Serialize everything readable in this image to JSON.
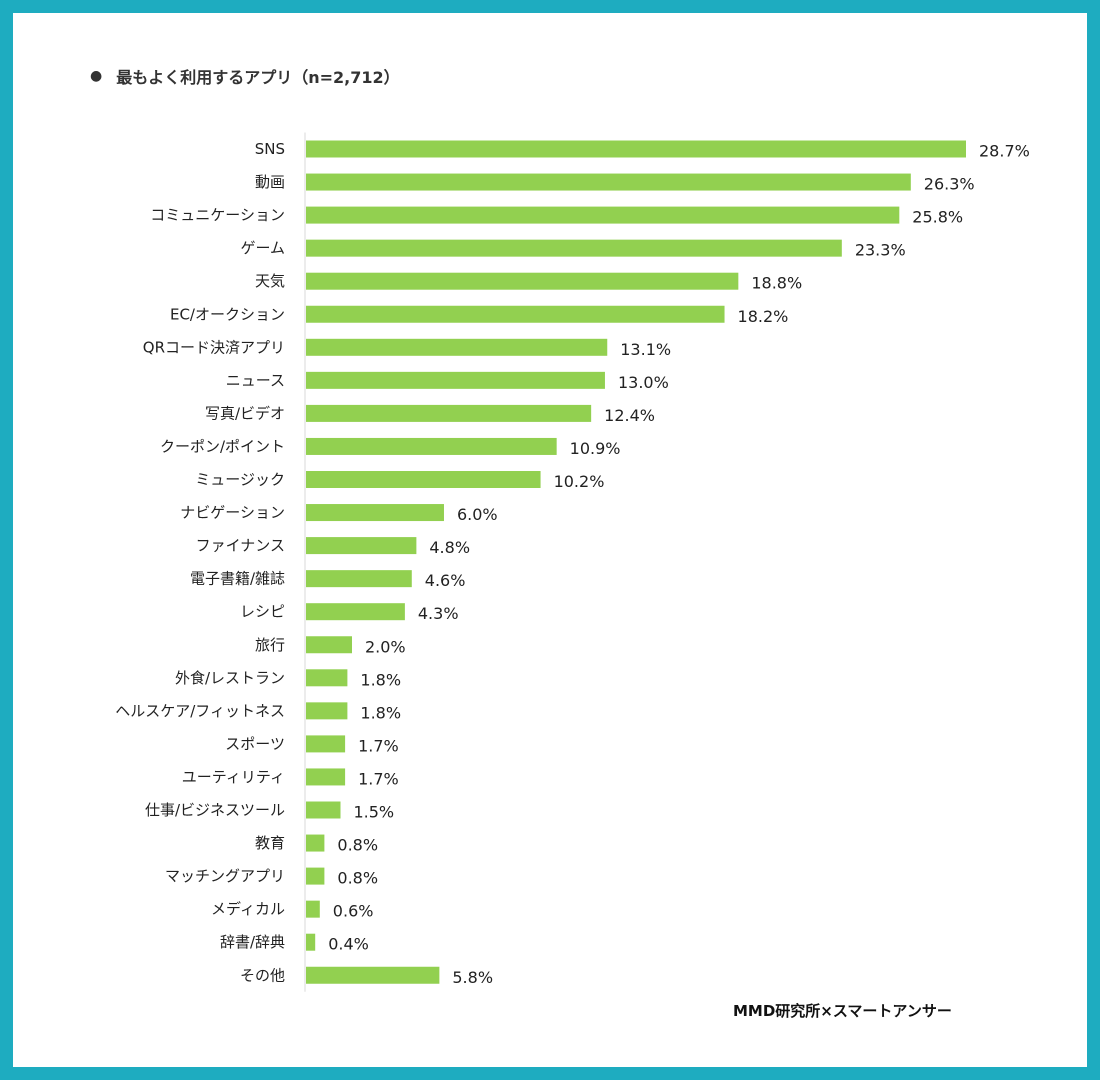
{
  "title_bullet": "●",
  "title": "最もよく利用するアプリ（n=2,712）",
  "source": "MMD研究所×スマートアンサー",
  "colors": {
    "frame": "#1eacc0",
    "bar": "#92d050",
    "axis": "#d9d9d9"
  },
  "chart_data": {
    "type": "bar",
    "orientation": "horizontal",
    "title": "最もよく利用するアプリ（n=2,712）",
    "xlabel": "",
    "ylabel": "",
    "grid": false,
    "unit": "%",
    "xlim": [
      0,
      28.7
    ],
    "categories": [
      "SNS",
      "動画",
      "コミュニケーション",
      "ゲーム",
      "天気",
      "EC/オークション",
      "QRコード決済アプリ",
      "ニュース",
      "写真/ビデオ",
      "クーポン/ポイント",
      "ミュージック",
      "ナビゲーション",
      "ファイナンス",
      "電子書籍/雑誌",
      "レシピ",
      "旅行",
      "外食/レストラン",
      "ヘルスケア/フィットネス",
      "スポーツ",
      "ユーティリティ",
      "仕事/ビジネスツール",
      "教育",
      "マッチングアプリ",
      "メディカル",
      "辞書/辞典",
      "その他"
    ],
    "values": [
      28.7,
      26.3,
      25.8,
      23.3,
      18.8,
      18.2,
      13.1,
      13.0,
      12.4,
      10.9,
      10.2,
      6.0,
      4.8,
      4.6,
      4.3,
      2.0,
      1.8,
      1.8,
      1.7,
      1.7,
      1.5,
      0.8,
      0.8,
      0.6,
      0.4,
      5.8
    ],
    "value_labels": [
      "28.7%",
      "26.3%",
      "25.8%",
      "23.3%",
      "18.8%",
      "18.2%",
      "13.1%",
      "13.0%",
      "12.4%",
      "10.9%",
      "10.2%",
      "6.0%",
      "4.8%",
      "4.6%",
      "4.3%",
      "2.0%",
      "1.8%",
      "1.8%",
      "1.7%",
      "1.7%",
      "1.5%",
      "0.8%",
      "0.8%",
      "0.6%",
      "0.4%",
      "5.8%"
    ]
  }
}
